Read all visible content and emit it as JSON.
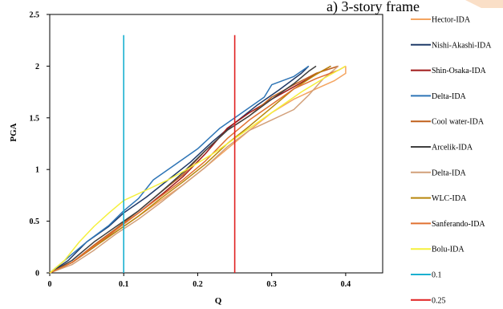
{
  "chart_data": {
    "type": "line",
    "title": "a) 3-story frame",
    "xlabel": "Q",
    "ylabel": "PGA",
    "xlim": [
      0,
      0.45
    ],
    "ylim": [
      0,
      2.5
    ],
    "xticks": [
      "0",
      "0.1",
      "0.2",
      "0.3",
      "0.4"
    ],
    "yticks": [
      "0",
      "0.5",
      "1",
      "1.5",
      "2",
      "2.5"
    ],
    "grid": false,
    "legend_position": "right",
    "series": [
      {
        "name": "Hector-IDA",
        "color": "#F4A460",
        "points": [
          [
            0,
            0
          ],
          [
            0.03,
            0.1
          ],
          [
            0.06,
            0.25
          ],
          [
            0.09,
            0.4
          ],
          [
            0.12,
            0.55
          ],
          [
            0.15,
            0.7
          ],
          [
            0.18,
            0.85
          ],
          [
            0.21,
            1.02
          ],
          [
            0.24,
            1.2
          ],
          [
            0.27,
            1.38
          ],
          [
            0.3,
            1.55
          ],
          [
            0.33,
            1.68
          ],
          [
            0.36,
            1.78
          ],
          [
            0.385,
            1.86
          ],
          [
            0.4,
            1.93
          ],
          [
            0.4,
            2.0
          ]
        ]
      },
      {
        "name": "Nishi-Akashi-IDA",
        "color": "#1F3A68",
        "points": [
          [
            0,
            0
          ],
          [
            0.025,
            0.12
          ],
          [
            0.05,
            0.3
          ],
          [
            0.08,
            0.45
          ],
          [
            0.1,
            0.58
          ],
          [
            0.13,
            0.73
          ],
          [
            0.16,
            0.9
          ],
          [
            0.19,
            1.07
          ],
          [
            0.22,
            1.27
          ],
          [
            0.25,
            1.45
          ],
          [
            0.28,
            1.62
          ],
          [
            0.31,
            1.77
          ],
          [
            0.34,
            1.93
          ],
          [
            0.35,
            2.0
          ]
        ]
      },
      {
        "name": "Shin-Osaka-IDA",
        "color": "#A01818",
        "points": [
          [
            0,
            0
          ],
          [
            0.03,
            0.1
          ],
          [
            0.06,
            0.25
          ],
          [
            0.09,
            0.42
          ],
          [
            0.12,
            0.58
          ],
          [
            0.15,
            0.75
          ],
          [
            0.18,
            0.93
          ],
          [
            0.21,
            1.15
          ],
          [
            0.24,
            1.4
          ],
          [
            0.27,
            1.55
          ],
          [
            0.3,
            1.68
          ],
          [
            0.33,
            1.8
          ],
          [
            0.36,
            1.92
          ],
          [
            0.38,
            2.0
          ]
        ]
      },
      {
        "name": "Delta-IDA",
        "color": "#2E75B6",
        "points": [
          [
            0,
            0
          ],
          [
            0.025,
            0.15
          ],
          [
            0.05,
            0.3
          ],
          [
            0.08,
            0.46
          ],
          [
            0.1,
            0.6
          ],
          [
            0.12,
            0.72
          ],
          [
            0.14,
            0.9
          ],
          [
            0.17,
            1.05
          ],
          [
            0.2,
            1.2
          ],
          [
            0.23,
            1.4
          ],
          [
            0.26,
            1.55
          ],
          [
            0.29,
            1.7
          ],
          [
            0.3,
            1.82
          ],
          [
            0.33,
            1.9
          ],
          [
            0.35,
            2.0
          ]
        ]
      },
      {
        "name": "Cool water-IDA",
        "color": "#C0601C",
        "points": [
          [
            0,
            0
          ],
          [
            0.03,
            0.1
          ],
          [
            0.06,
            0.27
          ],
          [
            0.09,
            0.43
          ],
          [
            0.12,
            0.6
          ],
          [
            0.15,
            0.78
          ],
          [
            0.18,
            0.95
          ],
          [
            0.21,
            1.18
          ],
          [
            0.24,
            1.38
          ],
          [
            0.27,
            1.52
          ],
          [
            0.3,
            1.7
          ],
          [
            0.33,
            1.82
          ],
          [
            0.36,
            1.93
          ],
          [
            0.39,
            2.0
          ]
        ]
      },
      {
        "name": "Arcelik-IDA",
        "color": "#404040",
        "points": [
          [
            0,
            0
          ],
          [
            0.03,
            0.12
          ],
          [
            0.06,
            0.3
          ],
          [
            0.09,
            0.45
          ],
          [
            0.12,
            0.6
          ],
          [
            0.15,
            0.78
          ],
          [
            0.18,
            0.97
          ],
          [
            0.21,
            1.18
          ],
          [
            0.24,
            1.38
          ],
          [
            0.27,
            1.52
          ],
          [
            0.3,
            1.68
          ],
          [
            0.33,
            1.83
          ],
          [
            0.35,
            1.95
          ],
          [
            0.36,
            2.0
          ]
        ]
      },
      {
        "name": "Delta-IDA",
        "color": "#D2A07A",
        "points": [
          [
            0,
            0
          ],
          [
            0.03,
            0.08
          ],
          [
            0.06,
            0.22
          ],
          [
            0.09,
            0.38
          ],
          [
            0.12,
            0.52
          ],
          [
            0.15,
            0.68
          ],
          [
            0.18,
            0.85
          ],
          [
            0.21,
            1.02
          ],
          [
            0.24,
            1.22
          ],
          [
            0.27,
            1.38
          ],
          [
            0.3,
            1.48
          ],
          [
            0.33,
            1.58
          ],
          [
            0.35,
            1.72
          ],
          [
            0.37,
            1.88
          ],
          [
            0.39,
            2.0
          ]
        ]
      },
      {
        "name": "WLC-IDA",
        "color": "#B8860B",
        "points": [
          [
            0,
            0
          ],
          [
            0.03,
            0.1
          ],
          [
            0.06,
            0.25
          ],
          [
            0.09,
            0.4
          ],
          [
            0.12,
            0.55
          ],
          [
            0.15,
            0.72
          ],
          [
            0.18,
            0.88
          ],
          [
            0.21,
            1.05
          ],
          [
            0.24,
            1.25
          ],
          [
            0.27,
            1.42
          ],
          [
            0.3,
            1.6
          ],
          [
            0.33,
            1.78
          ],
          [
            0.36,
            1.92
          ],
          [
            0.38,
            2.0
          ]
        ]
      },
      {
        "name": "Sanferando-IDA",
        "color": "#E07030",
        "points": [
          [
            0,
            0
          ],
          [
            0.03,
            0.1
          ],
          [
            0.06,
            0.26
          ],
          [
            0.09,
            0.42
          ],
          [
            0.12,
            0.58
          ],
          [
            0.15,
            0.74
          ],
          [
            0.18,
            0.9
          ],
          [
            0.21,
            1.08
          ],
          [
            0.24,
            1.3
          ],
          [
            0.27,
            1.48
          ],
          [
            0.3,
            1.63
          ],
          [
            0.33,
            1.78
          ],
          [
            0.36,
            1.88
          ],
          [
            0.39,
            1.96
          ],
          [
            0.4,
            2.0
          ]
        ]
      },
      {
        "name": "Bolu-IDA",
        "color": "#F5F03C",
        "points": [
          [
            0,
            0
          ],
          [
            0.02,
            0.12
          ],
          [
            0.04,
            0.3
          ],
          [
            0.06,
            0.45
          ],
          [
            0.08,
            0.58
          ],
          [
            0.1,
            0.7
          ],
          [
            0.13,
            0.8
          ],
          [
            0.16,
            0.9
          ],
          [
            0.19,
            1.02
          ],
          [
            0.22,
            1.15
          ],
          [
            0.25,
            1.3
          ],
          [
            0.28,
            1.45
          ],
          [
            0.31,
            1.6
          ],
          [
            0.34,
            1.75
          ],
          [
            0.37,
            1.88
          ],
          [
            0.4,
            2.0
          ]
        ]
      },
      {
        "name": "0.1",
        "color": "#1AB0D0",
        "points": [
          [
            0.1,
            0
          ],
          [
            0.1,
            2.3
          ]
        ]
      },
      {
        "name": "0.25",
        "color": "#E02020",
        "points": [
          [
            0.25,
            0
          ],
          [
            0.25,
            2.3
          ]
        ]
      }
    ]
  }
}
